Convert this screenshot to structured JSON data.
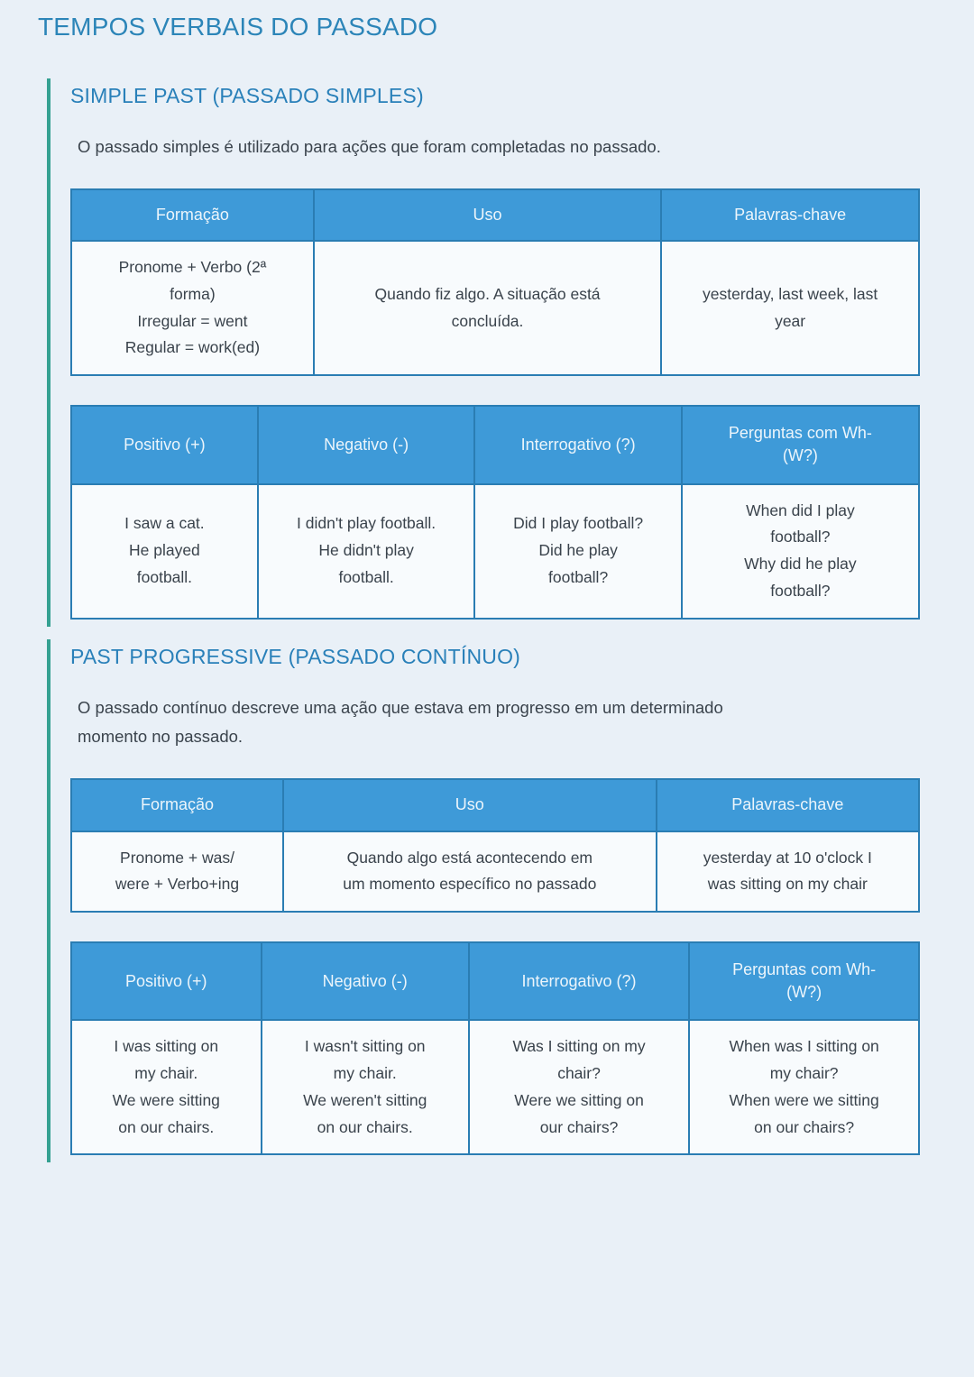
{
  "page": {
    "title": "TEMPOS VERBAIS DO PASSADO"
  },
  "colors": {
    "page_background": "#e9f0f7",
    "accent_teal": "#35a192",
    "title_blue": "#2c85b8",
    "section_title_blue": "#2980b9",
    "table_header_bg": "#3e9ad8",
    "table_border": "#2a7db3",
    "cell_bg": "#f8fbfd",
    "body_text": "#3a434c"
  },
  "sections": [
    {
      "title": "SIMPLE PAST (PASSADO SIMPLES)",
      "description": "O passado simples é utilizado para ações que foram completadas no passado.",
      "formation_table": {
        "headers": [
          "Formação",
          "Uso",
          "Palavras-chave"
        ],
        "row": [
          "Pronome + Verbo (2ª\nforma)\nIrregular = went\nRegular = work(ed)",
          "Quando fiz algo. A situação está\nconcluída.",
          "yesterday, last week, last\nyear"
        ]
      },
      "examples_table": {
        "headers": [
          "Positivo (+)",
          "Negativo (-)",
          "Interrogativo (?)",
          "Perguntas com Wh-\n(W?)"
        ],
        "row": [
          "I saw a cat.\nHe played\nfootball.",
          "I didn't play football.\nHe didn't play\nfootball.",
          "Did I play football?\nDid he play\nfootball?",
          "When did I play\nfootball?\nWhy did he play\nfootball?"
        ]
      }
    },
    {
      "title": "PAST PROGRESSIVE (PASSADO CONTÍNUO)",
      "description": "O passado contínuo descreve uma ação que estava em progresso em um determinado\nmomento no passado.",
      "formation_table": {
        "headers": [
          "Formação",
          "Uso",
          "Palavras-chave"
        ],
        "row": [
          "Pronome + was/\nwere + Verbo+ing",
          "Quando algo está acontecendo em\num momento específico no passado",
          "yesterday at 10 o'clock I\nwas sitting on my chair"
        ]
      },
      "examples_table": {
        "headers": [
          "Positivo (+)",
          "Negativo (-)",
          "Interrogativo (?)",
          "Perguntas com Wh-\n(W?)"
        ],
        "row": [
          "I was sitting on\nmy chair.\nWe were sitting\non our chairs.",
          "I wasn't sitting on\nmy chair.\nWe weren't sitting\non our chairs.",
          "Was I sitting on my\nchair?\nWere we sitting on\nour chairs?",
          "When was I sitting on\nmy chair?\nWhen were we sitting\non our chairs?"
        ]
      }
    }
  ]
}
